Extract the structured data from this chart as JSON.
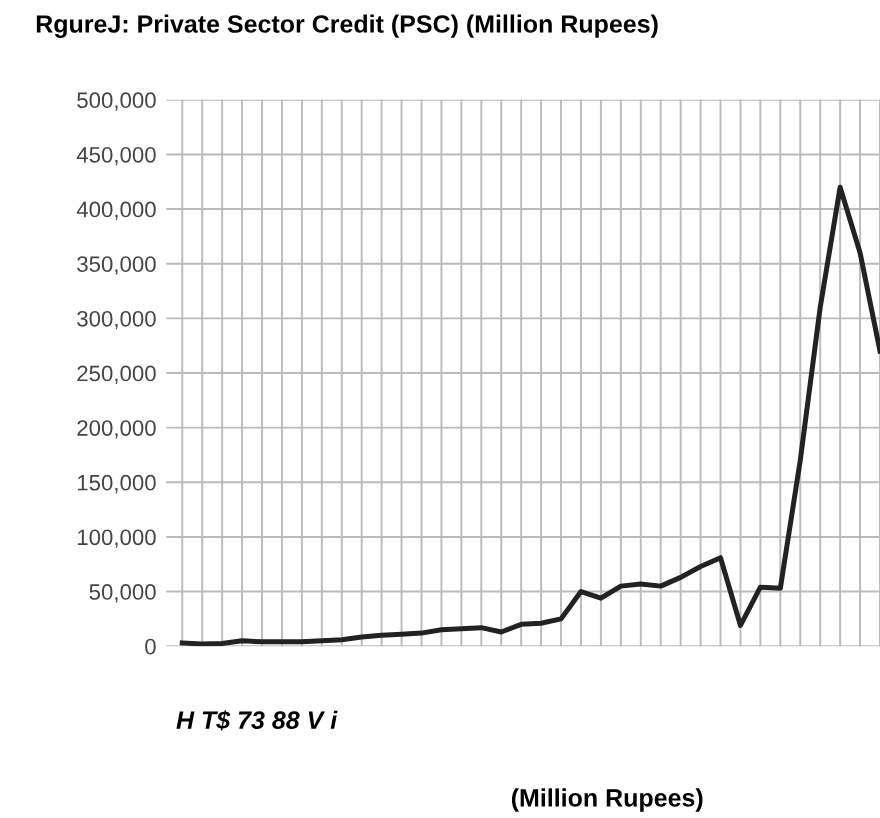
{
  "chart_data": {
    "type": "line",
    "title": "RgureJ: Private Sector Credit (PSC) (Million Rupees)",
    "categories": [
      null,
      null,
      null,
      null,
      null,
      null,
      null,
      null,
      null,
      null,
      null,
      null,
      null,
      null,
      null,
      null,
      null,
      null,
      null,
      null,
      null,
      null,
      null,
      null,
      null,
      null,
      null,
      null,
      null,
      null,
      null,
      null,
      null,
      null,
      null,
      null
    ],
    "series": [
      {
        "color": "#222222",
        "values": [
          3000,
          2000,
          2500,
          5000,
          4000,
          4000,
          4000,
          5000,
          6000,
          8500,
          10000,
          11000,
          12000,
          15000,
          16000,
          17000,
          13000,
          20000,
          21000,
          25000,
          50000,
          44000,
          55000,
          57000,
          55000,
          63000,
          73000,
          81000,
          19000,
          54000,
          53000,
          170000,
          310000,
          420000,
          360000,
          270000
        ]
      }
    ],
    "ylim": [
      0,
      500000
    ],
    "yticks": [
      {
        "value": 0,
        "label": "0"
      },
      {
        "value": 50000,
        "label": "50,000"
      },
      {
        "value": 100000,
        "label": "100,000"
      },
      {
        "value": 150000,
        "label": "150,000"
      },
      {
        "value": 200000,
        "label": "200,000"
      },
      {
        "value": 250000,
        "label": "250,000"
      },
      {
        "value": 300000,
        "label": "300,000"
      },
      {
        "value": 350000,
        "label": "350,000"
      },
      {
        "value": 400000,
        "label": "400,000"
      },
      {
        "value": 450000,
        "label": "450,000"
      },
      {
        "value": 500000,
        "label": "500,000"
      }
    ],
    "grid": true,
    "legend": false,
    "marker": "none",
    "line_style": "solid",
    "annotations": [
      "H T$ 73 88 V i",
      "(Million Rupees)"
    ]
  }
}
